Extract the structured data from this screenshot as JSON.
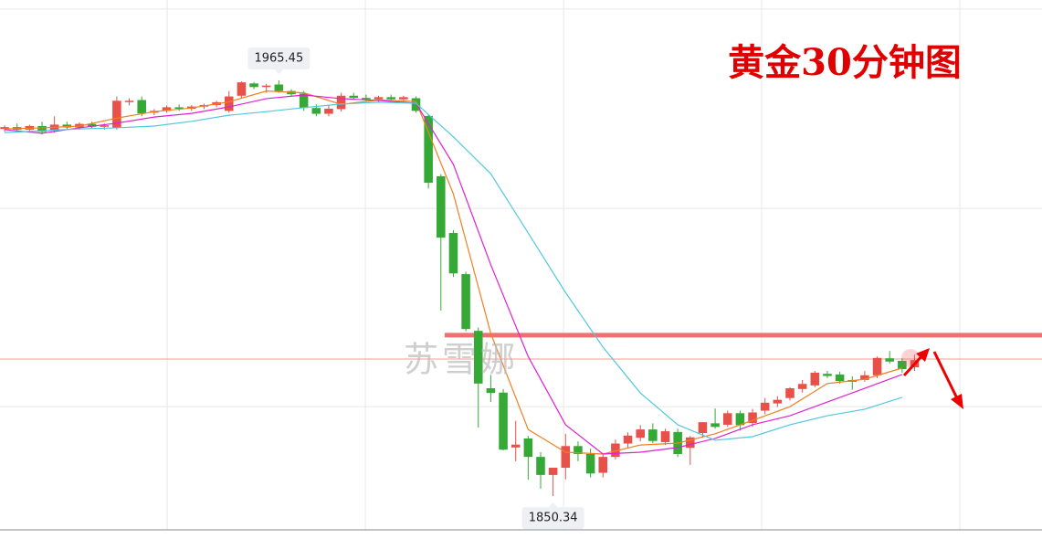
{
  "chart_data": {
    "type": "candlestick",
    "title": "黄金30分钟图",
    "title_color": "#e00000",
    "watermark": "苏雪娜",
    "up_color": "#e8504a",
    "down_color": "#35a935",
    "xlim": [
      -0.37,
      83.22
    ],
    "ylim": [
      1841.0,
      1987.7
    ],
    "xgrid": [
      13.04,
      28.94,
      44.84,
      60.73,
      76.63
    ],
    "ygrid": [
      1985.2,
      1930.0,
      1875.1
    ],
    "candles": [
      [
        1952.0,
        1953.0,
        1951.2,
        1952.5
      ],
      [
        1952.5,
        1953.5,
        1951.5,
        1951.8
      ],
      [
        1951.8,
        1953.2,
        1951.0,
        1952.8
      ],
      [
        1952.8,
        1954.0,
        1950.5,
        1951.2
      ],
      [
        1951.5,
        1955.5,
        1951.0,
        1953.2
      ],
      [
        1953.2,
        1954.0,
        1952.0,
        1952.4
      ],
      [
        1952.4,
        1953.8,
        1951.8,
        1953.4
      ],
      [
        1953.4,
        1954.0,
        1952.2,
        1952.6
      ],
      [
        1952.6,
        1953.5,
        1951.8,
        1953.0
      ],
      [
        1952.3,
        1961.0,
        1951.8,
        1959.8
      ],
      [
        1959.5,
        1960.5,
        1958.5,
        1959.8
      ],
      [
        1960.0,
        1961.0,
        1955.5,
        1956.3
      ],
      [
        1956.5,
        1957.5,
        1955.8,
        1957.0
      ],
      [
        1957.0,
        1958.5,
        1956.5,
        1958.0
      ],
      [
        1958.0,
        1958.8,
        1957.0,
        1957.6
      ],
      [
        1957.6,
        1958.6,
        1957.0,
        1958.2
      ],
      [
        1958.2,
        1959.0,
        1957.5,
        1958.6
      ],
      [
        1958.6,
        1959.8,
        1958.0,
        1959.4
      ],
      [
        1957.0,
        1962.5,
        1956.5,
        1961.0
      ],
      [
        1961.2,
        1965.2,
        1960.5,
        1964.9
      ],
      [
        1964.6,
        1965.0,
        1963.0,
        1963.6
      ],
      [
        1963.6,
        1964.5,
        1962.0,
        1964.0
      ],
      [
        1964.3,
        1965.45,
        1962.0,
        1962.5
      ],
      [
        1962.5,
        1963.0,
        1961.0,
        1961.6
      ],
      [
        1961.8,
        1962.5,
        1957.0,
        1957.8
      ],
      [
        1957.8,
        1958.8,
        1955.5,
        1956.2
      ],
      [
        1956.2,
        1958.5,
        1955.5,
        1957.6
      ],
      [
        1957.5,
        1962.0,
        1956.8,
        1961.2
      ],
      [
        1961.2,
        1962.0,
        1960.0,
        1960.6
      ],
      [
        1960.6,
        1961.5,
        1959.5,
        1960.2
      ],
      [
        1960.2,
        1961.2,
        1959.5,
        1960.8
      ],
      [
        1960.8,
        1961.5,
        1959.8,
        1960.2
      ],
      [
        1960.2,
        1961.2,
        1959.5,
        1960.8
      ],
      [
        1960.5,
        1961.0,
        1956.5,
        1957.0
      ],
      [
        1955.6,
        1956.0,
        1935.5,
        1937.1
      ],
      [
        1938.9,
        1939.5,
        1901.7,
        1921.9
      ],
      [
        1923.2,
        1924.0,
        1911.0,
        1912.0
      ],
      [
        1911.8,
        1912.5,
        1896.0,
        1896.6
      ],
      [
        1896.1,
        1897.0,
        1869.3,
        1881.5
      ],
      [
        1880.2,
        1883.9,
        1876.4,
        1878.9
      ],
      [
        1879.0,
        1880.0,
        1863.0,
        1863.2
      ],
      [
        1863.8,
        1871.2,
        1860.0,
        1864.6
      ],
      [
        1866.3,
        1867.0,
        1854.9,
        1861.2
      ],
      [
        1861.2,
        1862.5,
        1852.4,
        1856.2
      ],
      [
        1856.2,
        1858.0,
        1850.34,
        1858.2
      ],
      [
        1858.2,
        1867.6,
        1855.0,
        1864.2
      ],
      [
        1864.2,
        1865.5,
        1860.0,
        1862.0
      ],
      [
        1862.0,
        1863.5,
        1855.5,
        1856.6
      ],
      [
        1856.8,
        1862.0,
        1855.5,
        1861.2
      ],
      [
        1861.2,
        1866.0,
        1860.5,
        1864.9
      ],
      [
        1864.9,
        1868.0,
        1863.5,
        1867.1
      ],
      [
        1866.5,
        1870.0,
        1865.5,
        1868.8
      ],
      [
        1868.8,
        1870.5,
        1865.0,
        1865.6
      ],
      [
        1865.3,
        1869.0,
        1864.5,
        1868.3
      ],
      [
        1868.1,
        1869.0,
        1861.2,
        1862.0
      ],
      [
        1863.7,
        1867.0,
        1859.0,
        1866.6
      ],
      [
        1867.8,
        1870.8,
        1866.5,
        1870.8
      ],
      [
        1870.5,
        1874.6,
        1869.0,
        1869.5
      ],
      [
        1870.1,
        1874.0,
        1869.5,
        1873.3
      ],
      [
        1873.3,
        1874.0,
        1868.5,
        1870.0
      ],
      [
        1870.6,
        1874.5,
        1869.5,
        1873.5
      ],
      [
        1874.0,
        1877.5,
        1873.0,
        1876.2
      ],
      [
        1876.0,
        1878.0,
        1875.0,
        1877.0
      ],
      [
        1877.5,
        1880.5,
        1876.8,
        1880.2
      ],
      [
        1880.0,
        1882.5,
        1879.0,
        1881.4
      ],
      [
        1881.0,
        1885.0,
        1880.5,
        1884.5
      ],
      [
        1884.2,
        1885.0,
        1883.0,
        1883.6
      ],
      [
        1884.0,
        1884.8,
        1881.5,
        1882.2
      ],
      [
        1882.5,
        1883.5,
        1879.8,
        1882.0
      ],
      [
        1882.5,
        1885.0,
        1882.0,
        1883.8
      ],
      [
        1883.8,
        1889.0,
        1883.0,
        1888.6
      ],
      [
        1888.5,
        1890.5,
        1887.0,
        1887.6
      ],
      [
        1887.8,
        1888.5,
        1884.5,
        1885.5
      ],
      [
        1886.0,
        1889.5,
        1885.0,
        1888.0
      ]
    ],
    "ma_x": [
      0,
      3,
      6,
      9,
      12,
      15,
      18,
      21,
      24,
      27,
      30,
      33,
      36,
      39,
      42,
      45,
      48,
      51,
      54,
      57,
      60,
      63,
      66,
      69,
      72
    ],
    "series": [
      {
        "color": "#f08020",
        "values": [
          1952.0,
          1952.3,
          1952.8,
          1955.0,
          1956.8,
          1957.8,
          1959.5,
          1962.5,
          1962.0,
          1958.8,
          1960.0,
          1959.6,
          1934.0,
          1895.4,
          1868.8,
          1862.5,
          1862.0,
          1864.5,
          1865.0,
          1867.6,
          1871.3,
          1875.1,
          1881.5,
          1882.7,
          1885.8
        ]
      },
      {
        "color": "#e020d0",
        "values": [
          1951.8,
          1950.8,
          1952.3,
          1953.6,
          1955.3,
          1956.3,
          1958.1,
          1960.4,
          1961.4,
          1960.4,
          1959.9,
          1959.1,
          1942.2,
          1914.4,
          1889.0,
          1870.1,
          1862.0,
          1862.5,
          1863.8,
          1866.3,
          1870.1,
          1872.6,
          1876.4,
          1880.2,
          1884.0
        ]
      },
      {
        "color": "#50c8e0",
        "values": [
          1951.0,
          1951.5,
          1952.0,
          1952.3,
          1952.8,
          1954.1,
          1955.8,
          1956.8,
          1957.9,
          1958.9,
          1959.4,
          1959.1,
          1949.8,
          1939.6,
          1923.2,
          1906.7,
          1891.6,
          1878.9,
          1870.1,
          1865.8,
          1866.8,
          1870.1,
          1872.6,
          1874.4,
          1877.7
        ]
      }
    ],
    "levels": [
      {
        "value": 1894.9,
        "color": "#f07070",
        "width": 5,
        "from": 35.3
      },
      {
        "value": 1888.3,
        "color": "#f0a090",
        "width": 1
      }
    ],
    "high_label": 1965.45,
    "low_label": 1850.34
  }
}
